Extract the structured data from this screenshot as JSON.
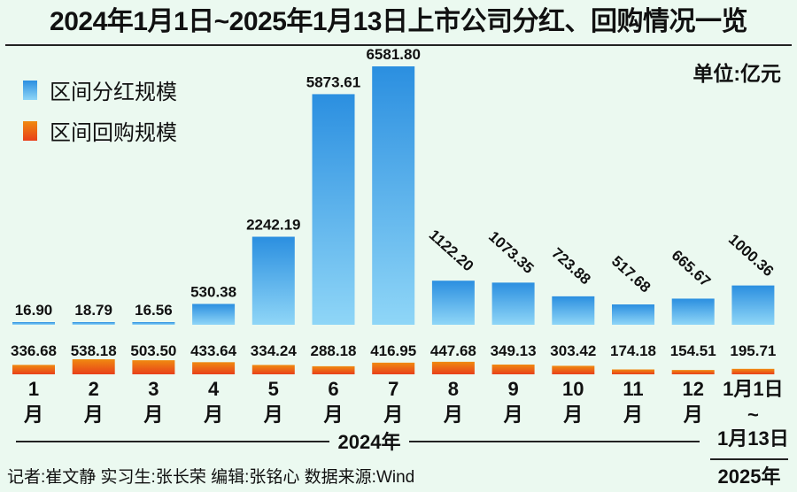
{
  "title": "2024年1月1日~2025年1月13日上市公司分红、回购情况一览",
  "unit": "单位:亿元",
  "legend": {
    "dividend": "区间分红规模",
    "buyback": "区间回购规模"
  },
  "footer": "记者:崔文静  实习生:张长荣  编辑:张铭心  数据来源:Wind",
  "year_2024": "2024年",
  "year_2025": "2025年",
  "colors": {
    "background": "#ebf9f0",
    "dividend_top": "#2b8fe0",
    "dividend_bottom": "#8fd6f7",
    "buyback_top": "#f08a10",
    "buyback_bottom": "#e8401a"
  },
  "chart_data": {
    "type": "bar",
    "categories": [
      "1月",
      "2月",
      "3月",
      "4月",
      "5月",
      "6月",
      "7月",
      "8月",
      "9月",
      "10月",
      "11月",
      "12月",
      "1月1日~1月13日"
    ],
    "series": [
      {
        "name": "区间分红规模",
        "values": [
          16.9,
          18.79,
          16.56,
          530.38,
          2242.19,
          5873.61,
          6581.8,
          1122.2,
          1073.35,
          723.88,
          517.68,
          665.67,
          1000.36
        ]
      },
      {
        "name": "区间回购规模",
        "values": [
          336.68,
          538.18,
          503.5,
          433.64,
          334.24,
          288.18,
          416.95,
          447.68,
          349.13,
          303.42,
          174.18,
          154.51,
          195.71
        ]
      }
    ],
    "dividend_labels": [
      "16.90",
      "18.79",
      "16.56",
      "530.38",
      "2242.19",
      "5873.61",
      "6581.80",
      "1122.20",
      "1073.35",
      "723.88",
      "517.68",
      "665.67",
      "1000.36"
    ],
    "buyback_labels": [
      "336.68",
      "538.18",
      "503.50",
      "433.64",
      "334.24",
      "288.18",
      "416.95",
      "447.68",
      "349.13",
      "303.42",
      "174.18",
      "154.51",
      "195.71"
    ],
    "axis_labels": [
      [
        "1",
        "月"
      ],
      [
        "2",
        "月"
      ],
      [
        "3",
        "月"
      ],
      [
        "4",
        "月"
      ],
      [
        "5",
        "月"
      ],
      [
        "6",
        "月"
      ],
      [
        "7",
        "月"
      ],
      [
        "8",
        "月"
      ],
      [
        "9",
        "月"
      ],
      [
        "10",
        "月"
      ],
      [
        "11",
        "月"
      ],
      [
        "12",
        "月"
      ],
      [
        "1月1日",
        "~",
        "1月13日"
      ]
    ],
    "legend_position": "top-left"
  }
}
